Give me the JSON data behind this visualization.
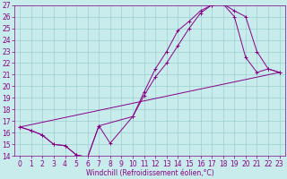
{
  "bg_color": "#c8ecec",
  "line_color": "#880088",
  "grid_color": "#9ecece",
  "xlim": [
    -0.5,
    23.5
  ],
  "ylim": [
    14,
    27
  ],
  "xticks": [
    0,
    1,
    2,
    3,
    4,
    5,
    6,
    7,
    8,
    9,
    10,
    11,
    12,
    13,
    14,
    15,
    16,
    17,
    18,
    19,
    20,
    21,
    22,
    23
  ],
  "yticks": [
    14,
    15,
    16,
    17,
    18,
    19,
    20,
    21,
    22,
    23,
    24,
    25,
    26,
    27
  ],
  "xlabel": "Windchill (Refroidissement éolien,°C)",
  "line1_x": [
    0,
    1,
    2,
    3,
    4,
    5,
    6,
    7,
    8,
    10,
    11,
    12,
    13,
    14,
    15,
    16,
    17,
    18,
    19,
    20,
    21,
    22,
    23
  ],
  "line1_y": [
    16.5,
    16.2,
    15.8,
    15.0,
    14.9,
    14.1,
    13.9,
    16.6,
    15.1,
    17.4,
    19.5,
    21.5,
    23.0,
    24.8,
    25.6,
    26.5,
    27.0,
    27.1,
    26.0,
    22.5,
    21.2,
    21.5,
    21.2
  ],
  "line2_x": [
    0,
    1,
    2,
    3,
    4,
    5,
    6,
    7,
    10,
    11,
    12,
    13,
    14,
    15,
    16,
    17,
    18,
    19,
    20,
    21,
    22,
    23
  ],
  "line2_y": [
    16.5,
    16.2,
    15.8,
    15.0,
    14.9,
    14.1,
    13.9,
    16.6,
    17.4,
    19.2,
    20.8,
    22.0,
    23.5,
    25.0,
    26.3,
    27.0,
    27.1,
    26.5,
    26.0,
    23.0,
    21.5,
    21.2
  ],
  "line3_x": [
    0,
    23
  ],
  "line3_y": [
    16.5,
    21.2
  ],
  "ticklabel_fontsize": 5.5,
  "xlabel_fontsize": 5.5
}
